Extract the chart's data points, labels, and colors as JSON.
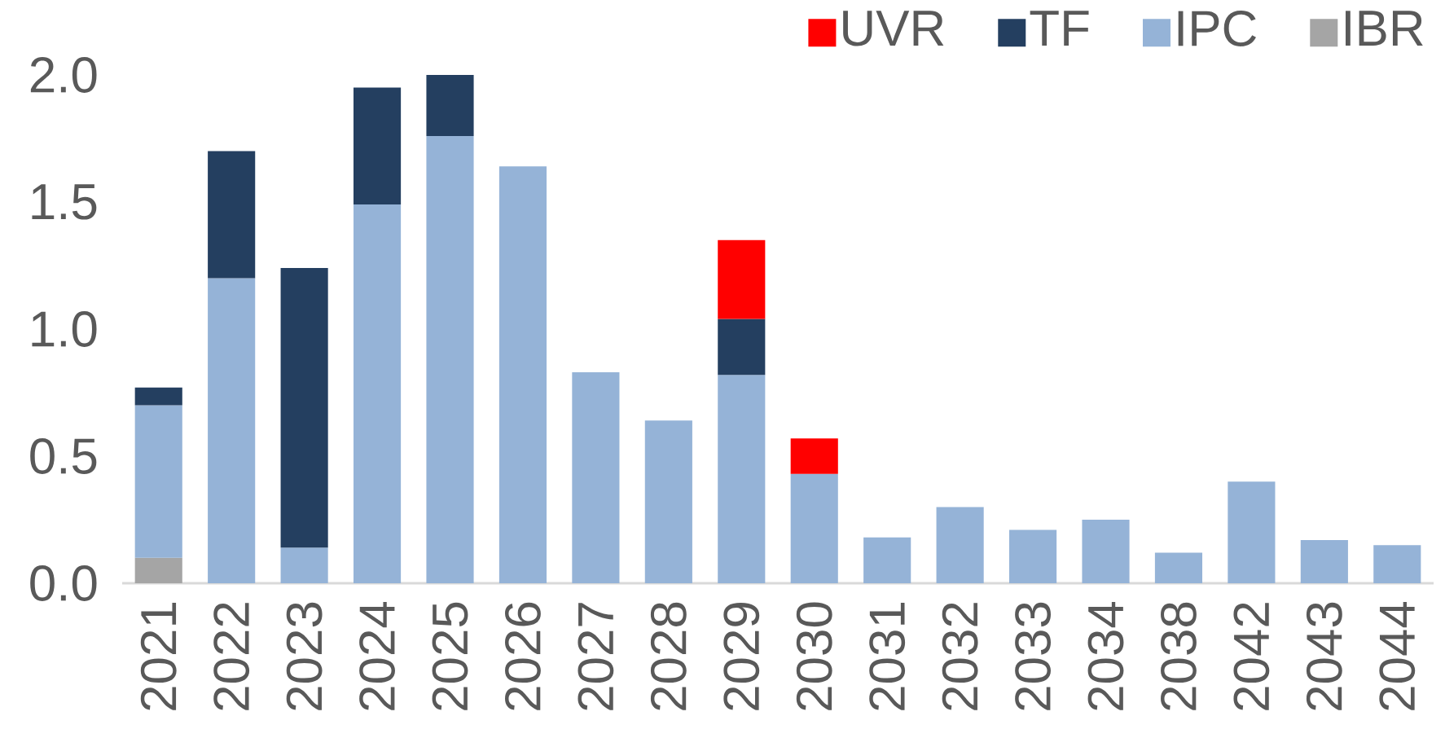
{
  "chart_data": {
    "type": "bar",
    "stacked": true,
    "categories": [
      "2021",
      "2022",
      "2023",
      "2024",
      "2025",
      "2026",
      "2027",
      "2028",
      "2029",
      "2030",
      "2031",
      "2032",
      "2033",
      "2034",
      "2038",
      "2042",
      "2043",
      "2044"
    ],
    "series": [
      {
        "name": "IBR",
        "color": "#a5a5a5",
        "values": [
          0.1,
          null,
          null,
          null,
          null,
          null,
          null,
          null,
          null,
          null,
          null,
          null,
          null,
          null,
          null,
          null,
          null,
          null
        ]
      },
      {
        "name": "IPC",
        "color": "#95b3d7",
        "values": [
          0.6,
          1.2,
          0.14,
          1.49,
          1.76,
          1.64,
          0.83,
          0.64,
          0.82,
          0.43,
          0.18,
          0.3,
          0.21,
          0.25,
          0.12,
          0.4,
          0.17,
          0.15
        ]
      },
      {
        "name": "TF",
        "color": "#243f60",
        "values": [
          0.07,
          0.5,
          1.1,
          0.46,
          0.24,
          null,
          null,
          null,
          0.22,
          null,
          null,
          null,
          null,
          null,
          null,
          null,
          null,
          null
        ]
      },
      {
        "name": "UVR",
        "color": "#ff0000",
        "values": [
          null,
          null,
          null,
          null,
          null,
          null,
          null,
          null,
          0.31,
          0.14,
          null,
          null,
          null,
          null,
          null,
          null,
          null,
          null
        ]
      }
    ],
    "ylim": [
      0,
      2.0
    ],
    "yticks": [
      {
        "value": 0,
        "label": "0.0"
      },
      0.5,
      {
        "value": 1,
        "label": "1.0"
      },
      1.5,
      {
        "value": 2,
        "label": "2.0"
      }
    ],
    "legend": "top right"
  }
}
